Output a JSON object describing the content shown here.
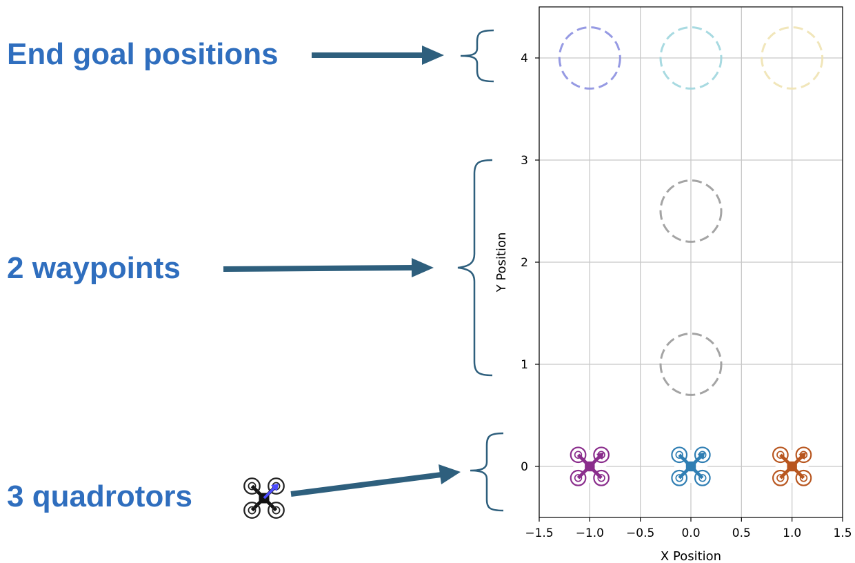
{
  "annotations": {
    "goals": "End goal positions",
    "waypoints": "2 waypoints",
    "quadrotors": "3 quadrotors"
  },
  "colors": {
    "annotation_text": "#2f6ebe",
    "arrow": "#2e5f7d"
  },
  "chart_data": {
    "type": "scatter",
    "xlabel": "X Position",
    "ylabel": "Y Position",
    "xlim": [
      -1.5,
      1.5
    ],
    "ylim": [
      -0.5,
      4.5
    ],
    "xticks": [
      -1.5,
      -1.0,
      -0.5,
      0.0,
      0.5,
      1.0,
      1.5
    ],
    "xtick_labels": [
      "−1.5",
      "−1.0",
      "−0.5",
      "0.0",
      "0.5",
      "1.0",
      "1.5"
    ],
    "yticks": [
      0,
      1,
      2,
      3,
      4
    ],
    "ytick_labels": [
      "0",
      "1",
      "2",
      "3",
      "4"
    ],
    "grid": true,
    "circle_radius": 0.3,
    "goals": [
      {
        "x": -1.0,
        "y": 4.0,
        "color": "#8b8fe0"
      },
      {
        "x": 0.0,
        "y": 4.0,
        "color": "#9fd6de"
      },
      {
        "x": 1.0,
        "y": 4.0,
        "color": "#efe3b3"
      }
    ],
    "waypoints": [
      {
        "x": 0.0,
        "y": 2.5,
        "color": "#9a9a9a"
      },
      {
        "x": 0.0,
        "y": 1.0,
        "color": "#9a9a9a"
      }
    ],
    "quadrotors": [
      {
        "x": -1.0,
        "y": 0.0,
        "color": "#8a2d8c"
      },
      {
        "x": 0.0,
        "y": 0.0,
        "color": "#2f7eb3"
      },
      {
        "x": 1.0,
        "y": 0.0,
        "color": "#b8561f"
      }
    ]
  }
}
